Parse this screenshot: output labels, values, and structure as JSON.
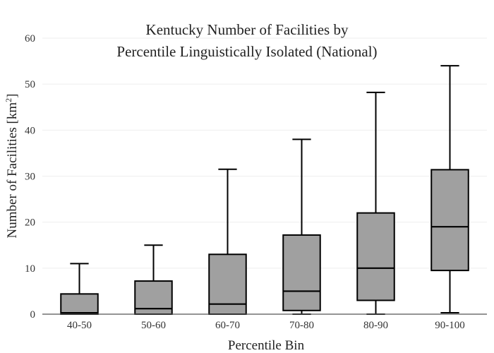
{
  "chart_data": {
    "type": "box",
    "title_lines": [
      "Kentucky Number of Facilities by",
      "Percentile Linguistically Isolated (National)"
    ],
    "xlabel": "Percentile Bin",
    "ylabel_main": "Number of Facilities  [km",
    "ylabel_sup": "2",
    "ylabel_end": "]",
    "ylim": [
      0,
      60
    ],
    "yticks": [
      0,
      10,
      20,
      30,
      40,
      50,
      60
    ],
    "grid": true,
    "categories": [
      "40-50",
      "50-60",
      "60-70",
      "70-80",
      "80-90",
      "90-100"
    ],
    "boxes": [
      {
        "category": "40-50",
        "min": 0,
        "q1": 0,
        "median": 0.3,
        "q3": 4.4,
        "max": 11
      },
      {
        "category": "50-60",
        "min": 0,
        "q1": 0,
        "median": 1.2,
        "q3": 7.2,
        "max": 15
      },
      {
        "category": "60-70",
        "min": 0,
        "q1": 0,
        "median": 2.2,
        "q3": 13,
        "max": 31.5
      },
      {
        "category": "70-80",
        "min": 0,
        "q1": 0.8,
        "median": 5,
        "q3": 17.2,
        "max": 38
      },
      {
        "category": "80-90",
        "min": 0,
        "q1": 3,
        "median": 10,
        "q3": 22,
        "max": 48.2
      },
      {
        "category": "90-100",
        "min": 0.3,
        "q1": 9.5,
        "median": 19,
        "q3": 31.4,
        "max": 54
      }
    ],
    "colors": {
      "box_fill": "#a0a0a0",
      "stroke": "#000000"
    }
  }
}
